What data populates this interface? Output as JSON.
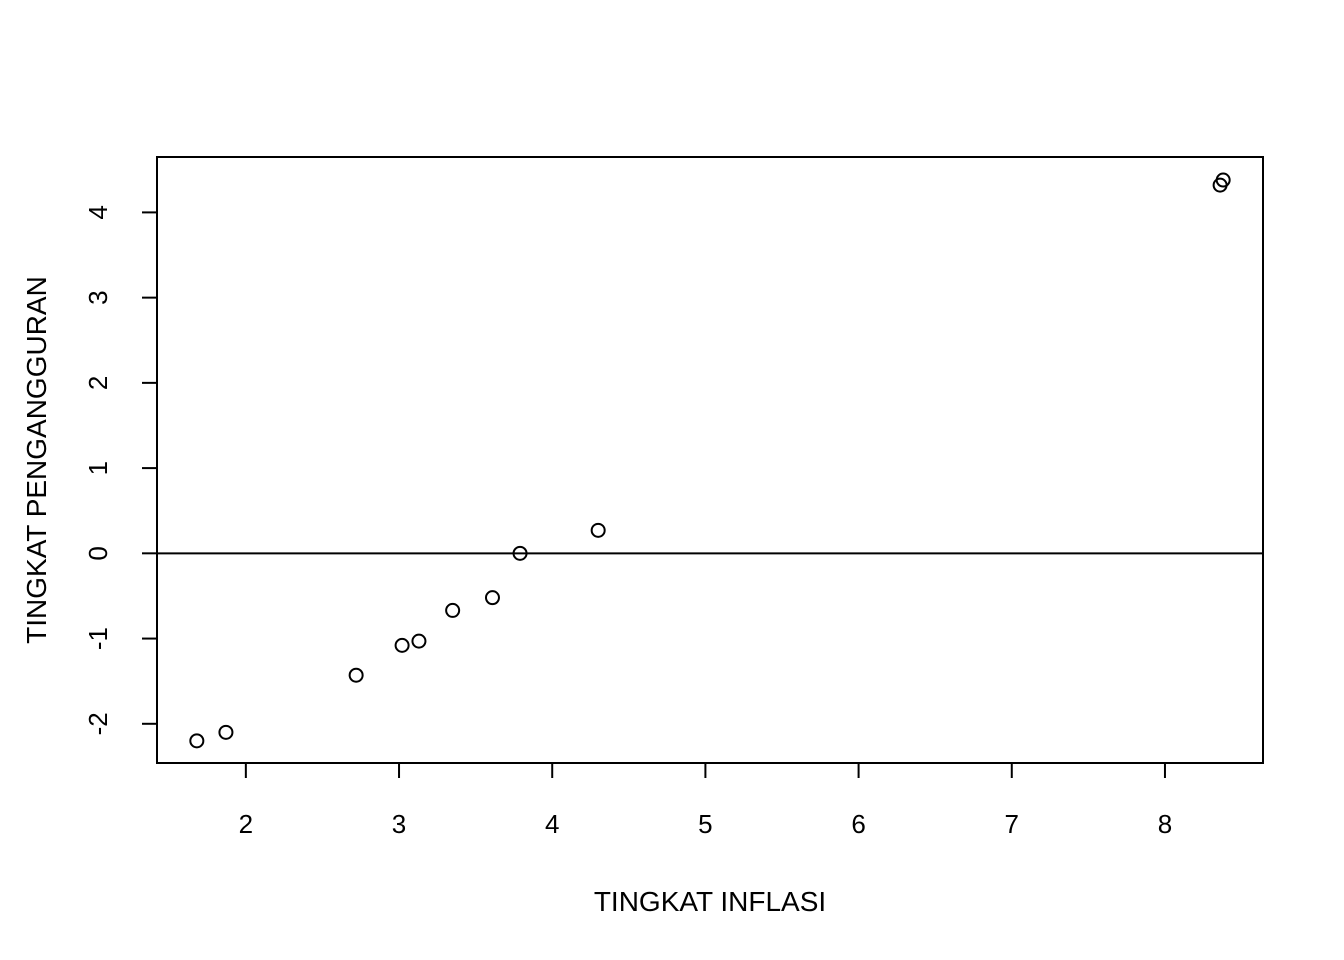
{
  "chart_data": {
    "type": "scatter",
    "title": "",
    "xlabel": "TINGKAT INFLASI",
    "ylabel": "TINGKAT PENGANGGURAN",
    "xlim": [
      1.42,
      8.64
    ],
    "ylim": [
      -2.46,
      4.65
    ],
    "xticks": [
      2,
      3,
      4,
      5,
      6,
      7,
      8
    ],
    "yticks": [
      -2,
      -1,
      0,
      1,
      2,
      3,
      4
    ],
    "reference_line": {
      "y": 0
    },
    "grid": false,
    "marker": "open-circle",
    "marker_color": "#000000",
    "series": [
      {
        "name": "points",
        "points": [
          {
            "x": 1.68,
            "y": -2.2
          },
          {
            "x": 1.87,
            "y": -2.1
          },
          {
            "x": 2.72,
            "y": -1.43
          },
          {
            "x": 3.02,
            "y": -1.08
          },
          {
            "x": 3.13,
            "y": -1.03
          },
          {
            "x": 3.35,
            "y": -0.67
          },
          {
            "x": 3.61,
            "y": -0.52
          },
          {
            "x": 3.79,
            "y": 0.0
          },
          {
            "x": 4.3,
            "y": 0.27
          },
          {
            "x": 8.36,
            "y": 4.32
          },
          {
            "x": 8.38,
            "y": 4.38
          }
        ]
      }
    ]
  }
}
